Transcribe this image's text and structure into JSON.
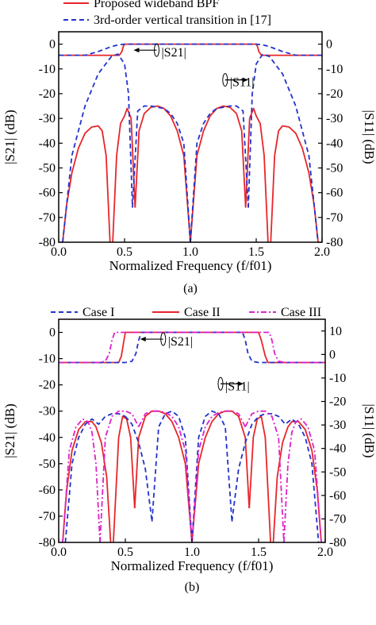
{
  "chart_data": [
    {
      "panel_label": "(a)",
      "type": "line",
      "xlabel": "Normalized Frequency (f/f01)",
      "ylabel_left": "|S21| (dB)",
      "ylabel_right": "|S11| (dB)",
      "xlim": [
        0.0,
        2.0
      ],
      "ylim_left": [
        -80,
        5
      ],
      "ylim_right": [
        -80,
        5
      ],
      "x_ticks": [
        "0.0",
        "0.5",
        "1.0",
        "1.5",
        "2.0"
      ],
      "y_ticks_left": [
        "0",
        "-10",
        "-20",
        "-30",
        "-40",
        "-50",
        "-60",
        "-70",
        "-80"
      ],
      "y_ticks_right": [
        "0",
        "-10",
        "-20",
        "-30",
        "-40",
        "-50",
        "-60",
        "-70",
        "-80"
      ],
      "legend": [
        {
          "label": "Proposed wideband BPF",
          "color": "#e8262a",
          "style": "solid"
        },
        {
          "label": "3rd-order vertical transition in [17]",
          "color": "#2233cc",
          "style": "dashed"
        }
      ],
      "annotations": [
        {
          "text": "|S21|",
          "x": 0.78,
          "y": -5
        },
        {
          "text": "|S11|",
          "x": 1.3,
          "y": -17
        }
      ],
      "series": [
        {
          "name": "Proposed wideband BPF",
          "color": "#e8262a",
          "style": "solid",
          "x": [
            0.0,
            0.46,
            0.48,
            0.49,
            0.5,
            0.52,
            0.55,
            1.45,
            1.48,
            1.5,
            1.51,
            1.52,
            1.54,
            2.0
          ],
          "y": [
            -4.5,
            -4.5,
            -3,
            -1,
            0,
            0,
            0,
            0,
            0,
            0,
            -1,
            -3,
            -4.5,
            -4.5
          ]
        },
        {
          "name": "",
          "color": "#e8262a",
          "style": "solid",
          "x": [
            0.03,
            0.06,
            0.1,
            0.15,
            0.2,
            0.25,
            0.3,
            0.33,
            0.36,
            0.39
          ],
          "y": [
            -80,
            -65,
            -52,
            -42,
            -36,
            -33.5,
            -33,
            -35,
            -45,
            -80
          ]
        },
        {
          "name": "",
          "color": "#e8262a",
          "style": "solid",
          "x": [
            0.41,
            0.44,
            0.47,
            0.5,
            0.52,
            0.55,
            0.58
          ],
          "y": [
            -80,
            -45,
            -32,
            -29,
            -26,
            -30,
            -66
          ]
        },
        {
          "name": "",
          "color": "#e8262a",
          "style": "solid",
          "x": [
            0.58,
            0.61,
            0.65,
            0.7,
            0.75,
            0.8,
            0.85,
            0.9,
            0.95,
            1.0
          ],
          "y": [
            -66,
            -35,
            -28,
            -25.5,
            -25,
            -26,
            -29,
            -35,
            -45,
            -80
          ]
        },
        {
          "name": "",
          "color": "#e8262a",
          "style": "solid",
          "x": [
            1.0,
            1.05,
            1.1,
            1.15,
            1.2,
            1.25,
            1.3,
            1.35,
            1.39,
            1.42
          ],
          "y": [
            -80,
            -45,
            -35,
            -29,
            -26,
            -25,
            -25.5,
            -28,
            -35,
            -66
          ]
        },
        {
          "name": "",
          "color": "#e8262a",
          "style": "solid",
          "x": [
            1.42,
            1.45,
            1.48,
            1.5,
            1.53,
            1.56,
            1.59
          ],
          "y": [
            -66,
            -30,
            -26,
            -29,
            -32,
            -45,
            -80
          ]
        },
        {
          "name": "",
          "color": "#e8262a",
          "style": "solid",
          "x": [
            1.61,
            1.64,
            1.67,
            1.7,
            1.75,
            1.8,
            1.85,
            1.9,
            1.94,
            1.97
          ],
          "y": [
            -80,
            -45,
            -35,
            -33,
            -33.5,
            -36,
            -42,
            -52,
            -65,
            -80
          ]
        },
        {
          "name": "3rd-order vertical transition in [17]",
          "color": "#2233cc",
          "style": "dashed",
          "x": [
            0.0,
            0.2,
            0.3,
            0.35,
            0.4,
            0.45,
            0.5,
            0.55,
            1.45,
            1.5,
            1.55,
            1.6,
            1.65,
            1.7,
            1.8,
            2.0
          ],
          "y": [
            -4.5,
            -4.5,
            -3,
            -2,
            -1,
            -0.3,
            0,
            0,
            0,
            0,
            -0.3,
            -1,
            -2,
            -3,
            -4.5,
            -4.5
          ]
        },
        {
          "name": "",
          "color": "#2233cc",
          "style": "dashed",
          "x": [
            0.03,
            0.1,
            0.2,
            0.3,
            0.4,
            0.45,
            0.5,
            0.53,
            0.56
          ],
          "y": [
            -80,
            -45,
            -25,
            -12,
            -5,
            -4,
            -8,
            -20,
            -66
          ]
        },
        {
          "name": "",
          "color": "#2233cc",
          "style": "dashed",
          "x": [
            0.56,
            0.6,
            0.65,
            0.7,
            0.75,
            0.8,
            0.85,
            0.9,
            0.95,
            1.0
          ],
          "y": [
            -66,
            -27,
            -25,
            -25,
            -25.5,
            -26,
            -28,
            -32,
            -40,
            -80
          ]
        },
        {
          "name": "",
          "color": "#2233cc",
          "style": "dashed",
          "x": [
            1.0,
            1.05,
            1.1,
            1.15,
            1.2,
            1.25,
            1.3,
            1.35,
            1.4,
            1.44
          ],
          "y": [
            -80,
            -40,
            -32,
            -28,
            -26,
            -25.5,
            -25,
            -25,
            -27,
            -66
          ]
        },
        {
          "name": "",
          "color": "#2233cc",
          "style": "dashed",
          "x": [
            1.44,
            1.47,
            1.5,
            1.55,
            1.6,
            1.7,
            1.8,
            1.9,
            1.97
          ],
          "y": [
            -66,
            -20,
            -8,
            -4,
            -5,
            -12,
            -25,
            -45,
            -80
          ]
        }
      ]
    },
    {
      "panel_label": "(b)",
      "type": "line",
      "xlabel": "Normalized Frequency (f/f01)",
      "ylabel_left": "|S21| (dB)",
      "ylabel_right": "|S11| (dB)",
      "xlim": [
        0.0,
        2.0
      ],
      "ylim_left": [
        -80,
        5
      ],
      "ylim_right": [
        -80,
        15
      ],
      "x_ticks": [
        "0.0",
        "0.5",
        "1.0",
        "1.5",
        "2.0"
      ],
      "y_ticks_left": [
        "0",
        "-10",
        "-20",
        "-30",
        "-40",
        "-50",
        "-60",
        "-70",
        "-80"
      ],
      "y_ticks_right": [
        "10",
        "0",
        "-10",
        "-20",
        "-30",
        "-40",
        "-50",
        "-60",
        "-70",
        "-80"
      ],
      "legend": [
        {
          "label": "Case I",
          "color": "#2233cc",
          "style": "dashed"
        },
        {
          "label": "Case II",
          "color": "#e8262a",
          "style": "solid"
        },
        {
          "label": "Case III",
          "color": "#dd22cc",
          "style": "dashdot"
        }
      ],
      "annotations": [
        {
          "text": "|S21|",
          "x": 0.82,
          "y": -5
        },
        {
          "text": "|S11|",
          "x": 1.25,
          "y": -22
        }
      ],
      "series": [
        {
          "name": "Case II",
          "color": "#e8262a",
          "style": "solid",
          "x": [
            0.0,
            0.45,
            0.47,
            0.49,
            0.5,
            0.52,
            0.55,
            1.45,
            1.5,
            1.52,
            1.55,
            1.57,
            2.0
          ],
          "y": [
            -11.5,
            -11.5,
            -9,
            -3,
            0,
            0,
            0,
            0,
            0,
            -3,
            -9,
            -11.5,
            -11.5
          ]
        },
        {
          "name": "",
          "color": "#e8262a",
          "style": "solid",
          "x": [
            0.03,
            0.06,
            0.1,
            0.15,
            0.2,
            0.25,
            0.28,
            0.32,
            0.36,
            0.39
          ],
          "y": [
            -80,
            -60,
            -45,
            -37,
            -34,
            -34,
            -36,
            -42,
            -55,
            -80
          ]
        },
        {
          "name": "",
          "color": "#e8262a",
          "style": "solid",
          "x": [
            0.41,
            0.45,
            0.48,
            0.51,
            0.54,
            0.57
          ],
          "y": [
            -80,
            -40,
            -32,
            -33,
            -40,
            -67
          ]
        },
        {
          "name": "",
          "color": "#e8262a",
          "style": "solid",
          "x": [
            0.57,
            0.6,
            0.65,
            0.7,
            0.75,
            0.8,
            0.85,
            0.9,
            0.95,
            1.0
          ],
          "y": [
            -67,
            -40,
            -32,
            -30,
            -30,
            -31,
            -34,
            -40,
            -50,
            -80
          ]
        },
        {
          "name": "",
          "color": "#e8262a",
          "style": "solid",
          "x": [
            1.0,
            1.05,
            1.1,
            1.15,
            1.2,
            1.25,
            1.3,
            1.35,
            1.4,
            1.43
          ],
          "y": [
            -80,
            -50,
            -40,
            -34,
            -31,
            -30,
            -30,
            -32,
            -40,
            -67
          ]
        },
        {
          "name": "",
          "color": "#e8262a",
          "style": "solid",
          "x": [
            1.43,
            1.46,
            1.49,
            1.52,
            1.55,
            1.59
          ],
          "y": [
            -67,
            -40,
            -33,
            -32,
            -40,
            -80
          ]
        },
        {
          "name": "",
          "color": "#e8262a",
          "style": "solid",
          "x": [
            1.61,
            1.64,
            1.68,
            1.72,
            1.75,
            1.8,
            1.85,
            1.9,
            1.94,
            1.97
          ],
          "y": [
            -80,
            -55,
            -42,
            -36,
            -34,
            -34,
            -37,
            -45,
            -60,
            -80
          ]
        },
        {
          "name": "Case I",
          "color": "#2233cc",
          "style": "dashed",
          "x": [
            0.0,
            0.5,
            0.55,
            0.58,
            0.6,
            0.62,
            0.65,
            1.35,
            1.38,
            1.4,
            1.42,
            1.45,
            1.5,
            2.0
          ],
          "y": [
            -11.5,
            -11.5,
            -11,
            -8,
            -3,
            0,
            0,
            0,
            0,
            -3,
            -8,
            -11,
            -11.5,
            -11.5
          ]
        },
        {
          "name": "",
          "color": "#2233cc",
          "style": "dashed",
          "x": [
            0.05,
            0.1,
            0.15,
            0.2,
            0.25,
            0.3,
            0.35,
            0.4,
            0.45,
            0.5
          ],
          "y": [
            -80,
            -50,
            -40,
            -35,
            -33,
            -35,
            -32,
            -31,
            -31,
            -32
          ]
        },
        {
          "name": "",
          "color": "#2233cc",
          "style": "dashed",
          "x": [
            0.5,
            0.55,
            0.6,
            0.65,
            0.7
          ],
          "y": [
            -32,
            -35,
            -42,
            -52,
            -72
          ]
        },
        {
          "name": "",
          "color": "#2233cc",
          "style": "dashed",
          "x": [
            0.7,
            0.75,
            0.8,
            0.85,
            0.9,
            0.95,
            1.0
          ],
          "y": [
            -72,
            -36,
            -31,
            -30,
            -32,
            -40,
            -80
          ]
        },
        {
          "name": "",
          "color": "#2233cc",
          "style": "dashed",
          "x": [
            1.0,
            1.05,
            1.1,
            1.15,
            1.2,
            1.25,
            1.3
          ],
          "y": [
            -80,
            -40,
            -32,
            -30,
            -31,
            -36,
            -72
          ]
        },
        {
          "name": "",
          "color": "#2233cc",
          "style": "dashed",
          "x": [
            1.3,
            1.35,
            1.4,
            1.45,
            1.5,
            1.55,
            1.6,
            1.65,
            1.7,
            1.75,
            1.8,
            1.85,
            1.9,
            1.95
          ],
          "y": [
            -72,
            -52,
            -42,
            -35,
            -32,
            -31,
            -31,
            -32,
            -35,
            -33,
            -35,
            -40,
            -50,
            -80
          ]
        },
        {
          "name": "Case III",
          "color": "#dd22cc",
          "style": "dashdot",
          "x": [
            0.0,
            0.3,
            0.35,
            0.38,
            0.4,
            0.42,
            0.45,
            1.55,
            1.58,
            1.6,
            1.62,
            1.65,
            1.7,
            2.0
          ],
          "y": [
            -11.5,
            -11.5,
            -11,
            -8,
            -3,
            0,
            0,
            0,
            0,
            -3,
            -8,
            -11,
            -11.5,
            -11.5
          ]
        },
        {
          "name": "",
          "color": "#dd22cc",
          "style": "dashdot",
          "x": [
            0.03,
            0.08,
            0.13,
            0.18,
            0.22,
            0.25,
            0.28,
            0.31
          ],
          "y": [
            -80,
            -45,
            -36,
            -33,
            -34,
            -38,
            -50,
            -80
          ]
        },
        {
          "name": "",
          "color": "#dd22cc",
          "style": "dashdot",
          "x": [
            0.31,
            0.35,
            0.4,
            0.45,
            0.5,
            0.55,
            0.6
          ],
          "y": [
            -80,
            -40,
            -32,
            -30,
            -30,
            -31,
            -36
          ]
        },
        {
          "name": "",
          "color": "#dd22cc",
          "style": "dashdot",
          "x": [
            0.6,
            0.65,
            0.7,
            0.75,
            0.8,
            0.85,
            0.9,
            0.95,
            1.0
          ],
          "y": [
            -36,
            -31,
            -30,
            -30,
            -30.5,
            -32,
            -36,
            -45,
            -80
          ]
        },
        {
          "name": "",
          "color": "#dd22cc",
          "style": "dashdot",
          "x": [
            1.0,
            1.05,
            1.1,
            1.15,
            1.2,
            1.25,
            1.3,
            1.35,
            1.4
          ],
          "y": [
            -80,
            -45,
            -36,
            -32,
            -30.5,
            -30,
            -30,
            -31,
            -36
          ]
        },
        {
          "name": "",
          "color": "#dd22cc",
          "style": "dashdot",
          "x": [
            1.4,
            1.45,
            1.5,
            1.55,
            1.6,
            1.65,
            1.69
          ],
          "y": [
            -36,
            -31,
            -30,
            -30,
            -32,
            -40,
            -80
          ]
        },
        {
          "name": "",
          "color": "#dd22cc",
          "style": "dashdot",
          "x": [
            1.69,
            1.72,
            1.75,
            1.78,
            1.82,
            1.87,
            1.92,
            1.97
          ],
          "y": [
            -80,
            -50,
            -38,
            -34,
            -33,
            -36,
            -45,
            -80
          ]
        }
      ]
    }
  ]
}
